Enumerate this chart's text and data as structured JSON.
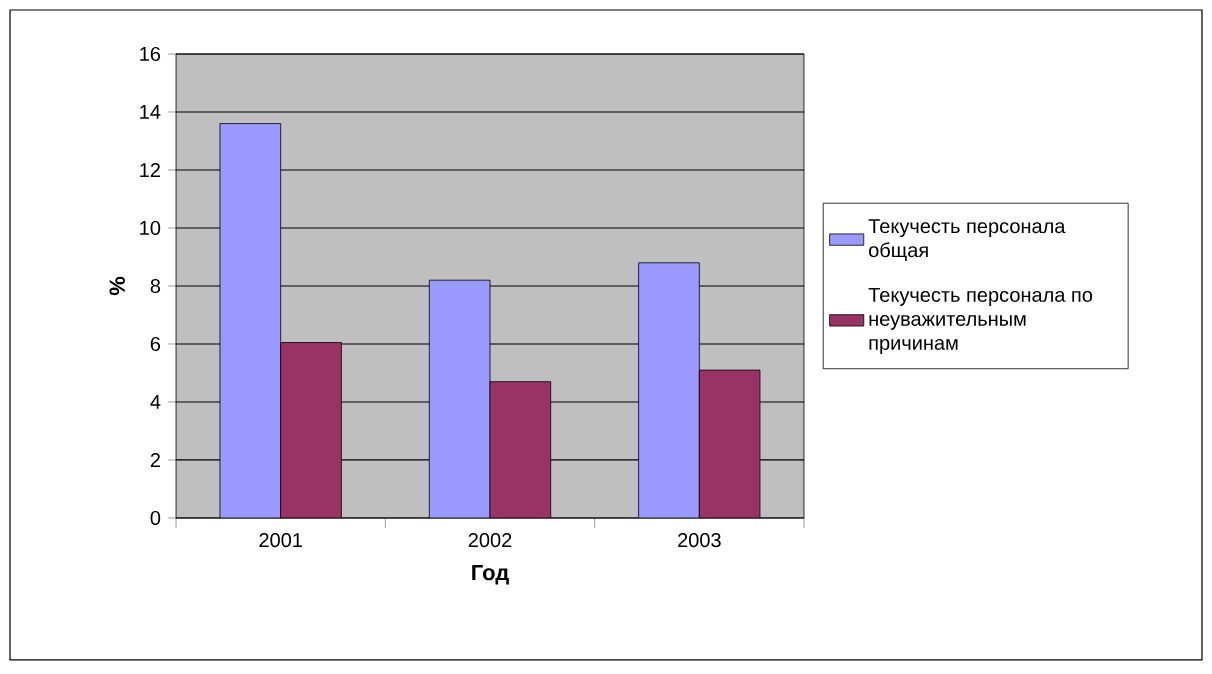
{
  "chart_data": {
    "type": "bar",
    "xlabel": "Год",
    "ylabel": "%",
    "categories": [
      "2001",
      "2002",
      "2003"
    ],
    "series": [
      {
        "name": "Текучесть персонала общая",
        "color": "#9999ff",
        "values": [
          13.6,
          8.2,
          8.8
        ]
      },
      {
        "name": "Текучесть персонала по неуважительным причинам",
        "color": "#993366",
        "values": [
          6.05,
          4.7,
          5.1
        ]
      }
    ],
    "ylim": [
      0,
      16
    ],
    "yticks": [
      0,
      2,
      4,
      6,
      8,
      10,
      12,
      14,
      16
    ],
    "grid": "y",
    "legend": "right"
  }
}
